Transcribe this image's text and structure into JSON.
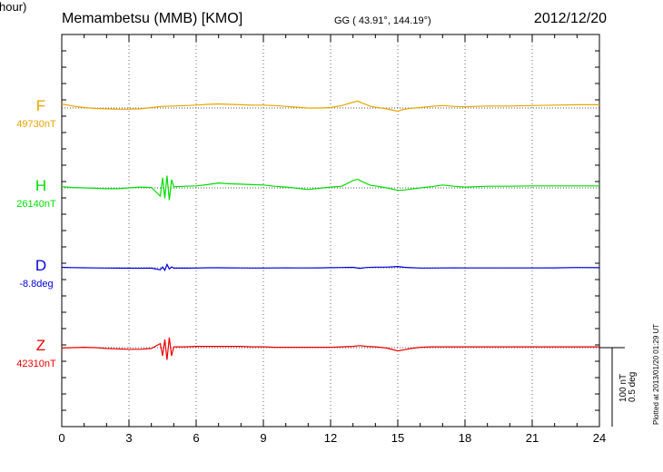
{
  "header": {
    "title": "Memambetsu (MMB)  [KMO]",
    "coords": "GG ( 43.91°, 144.19°)",
    "date": "2012/12/20"
  },
  "footer": {
    "scale_nt": "100 nT",
    "scale_deg": "0.5 deg",
    "plotted": "Plotted at 2013/01/20 01:29 UT"
  },
  "chart_data": {
    "type": "line",
    "xlabel": "U T (hour)",
    "xlim": [
      0,
      24
    ],
    "xticks": [
      "0",
      "3",
      "6",
      "9",
      "12",
      "15",
      "18",
      "21",
      "24"
    ],
    "grid": true,
    "series": [
      {
        "name": "F",
        "baseline_label": "49730nT",
        "color": "#e8a400",
        "x": [
          0,
          0.5,
          1,
          1.5,
          2,
          2.5,
          3,
          3.5,
          4,
          4.5,
          5,
          5.5,
          6,
          6.5,
          7,
          7.5,
          8,
          8.5,
          9,
          9.5,
          10,
          10.5,
          11,
          11.5,
          12,
          12.5,
          13,
          13.2,
          13.5,
          13.8,
          14,
          14.5,
          15,
          15.2,
          15.5,
          16,
          16.5,
          17,
          17.5,
          18,
          18.5,
          19,
          20,
          21,
          22,
          23,
          24
        ],
        "y": [
          49740,
          49735,
          49731,
          49729,
          49728,
          49727,
          49727,
          49728,
          49731,
          49734,
          49735,
          49736,
          49737,
          49739,
          49740,
          49739,
          49738,
          49737,
          49737,
          49736,
          49734,
          49732,
          49730,
          49730,
          49731,
          49736,
          49744,
          49747,
          49740,
          49734,
          49732,
          49728,
          49722,
          49726,
          49729,
          49731,
          49734,
          49736,
          49734,
          49733,
          49734,
          49735,
          49735,
          49736,
          49737,
          49738,
          49738
        ]
      },
      {
        "name": "H",
        "baseline_label": "26140nT",
        "color": "#00dd00",
        "x": [
          0,
          0.5,
          1,
          1.5,
          2,
          2.5,
          3,
          3.5,
          4,
          4.4,
          4.5,
          4.6,
          4.7,
          4.8,
          4.9,
          5,
          5.5,
          6,
          6.5,
          7,
          7.5,
          8,
          8.5,
          9,
          9.5,
          10,
          10.5,
          11,
          11.5,
          12,
          12.5,
          13,
          13.2,
          13.5,
          13.8,
          14,
          14.5,
          15,
          15.3,
          15.6,
          16,
          16.5,
          17,
          17.5,
          18,
          18.5,
          19,
          20,
          21,
          22,
          23,
          24
        ],
        "y": [
          26143,
          26141,
          26140,
          26139,
          26138,
          26138,
          26140,
          26142,
          26141,
          26120,
          26165,
          26115,
          26170,
          26110,
          26160,
          26143,
          26144,
          26145,
          26148,
          26152,
          26150,
          26149,
          26148,
          26147,
          26144,
          26142,
          26139,
          26136,
          26139,
          26142,
          26144,
          26158,
          26161,
          26153,
          26146,
          26145,
          26140,
          26134,
          26135,
          26137,
          26140,
          26143,
          26147,
          26144,
          26142,
          26143,
          26144,
          26144,
          26145,
          26145,
          26145,
          26145
        ]
      },
      {
        "name": "D",
        "baseline_label": "-8.8deg",
        "color": "#0000dd",
        "x": [
          0,
          0.5,
          1,
          1.5,
          2,
          2.5,
          3,
          3.5,
          4,
          4.4,
          4.5,
          4.6,
          4.7,
          4.8,
          4.9,
          5,
          5.5,
          6,
          6.5,
          7,
          7.5,
          8,
          8.5,
          9,
          9.5,
          10,
          10.5,
          11,
          11.5,
          12,
          12.5,
          13,
          13.3,
          13.6,
          14,
          14.5,
          15,
          15.3,
          15.6,
          16,
          16.5,
          17,
          17.5,
          18,
          18.5,
          19,
          20,
          21,
          22,
          23,
          24
        ],
        "y": [
          -8.795,
          -8.798,
          -8.8,
          -8.802,
          -8.803,
          -8.805,
          -8.806,
          -8.806,
          -8.804,
          -8.825,
          -8.79,
          -8.83,
          -8.76,
          -8.815,
          -8.79,
          -8.804,
          -8.805,
          -8.803,
          -8.8,
          -8.8,
          -8.801,
          -8.802,
          -8.803,
          -8.803,
          -8.802,
          -8.801,
          -8.802,
          -8.802,
          -8.801,
          -8.799,
          -8.797,
          -8.795,
          -8.807,
          -8.797,
          -8.792,
          -8.792,
          -8.785,
          -8.794,
          -8.799,
          -8.803,
          -8.803,
          -8.802,
          -8.801,
          -8.802,
          -8.802,
          -8.802,
          -8.802,
          -8.802,
          -8.801,
          -8.797,
          -8.799
        ]
      },
      {
        "name": "Z",
        "baseline_label": "42310nT",
        "color": "#ee0000",
        "x": [
          0,
          0.5,
          1,
          1.5,
          2,
          2.5,
          3,
          3.5,
          4,
          4.4,
          4.5,
          4.6,
          4.7,
          4.8,
          4.9,
          5,
          5.5,
          6,
          6.5,
          7,
          7.5,
          8,
          8.5,
          9,
          9.5,
          10,
          10.5,
          11,
          11.5,
          12,
          12.5,
          13,
          13.3,
          13.6,
          14,
          14.5,
          15,
          15.3,
          15.6,
          16,
          16.5,
          17,
          17.5,
          18,
          18.5,
          19,
          20,
          21,
          22,
          23,
          24
        ],
        "y": [
          42309,
          42310,
          42311,
          42310,
          42308,
          42307,
          42306,
          42306,
          42308,
          42320,
          42290,
          42330,
          42280,
          42335,
          42290,
          42312,
          42312,
          42313,
          42313,
          42313,
          42313,
          42313,
          42312,
          42312,
          42311,
          42311,
          42311,
          42311,
          42311,
          42311,
          42312,
          42313,
          42315,
          42313,
          42312,
          42309,
          42302,
          42305,
          42308,
          42311,
          42312,
          42312,
          42312,
          42312,
          42312,
          42312,
          42312,
          42312,
          42312,
          42312,
          42312
        ]
      }
    ],
    "scale_note": "vertical scale bar = 100 nT / 0.5 deg"
  }
}
